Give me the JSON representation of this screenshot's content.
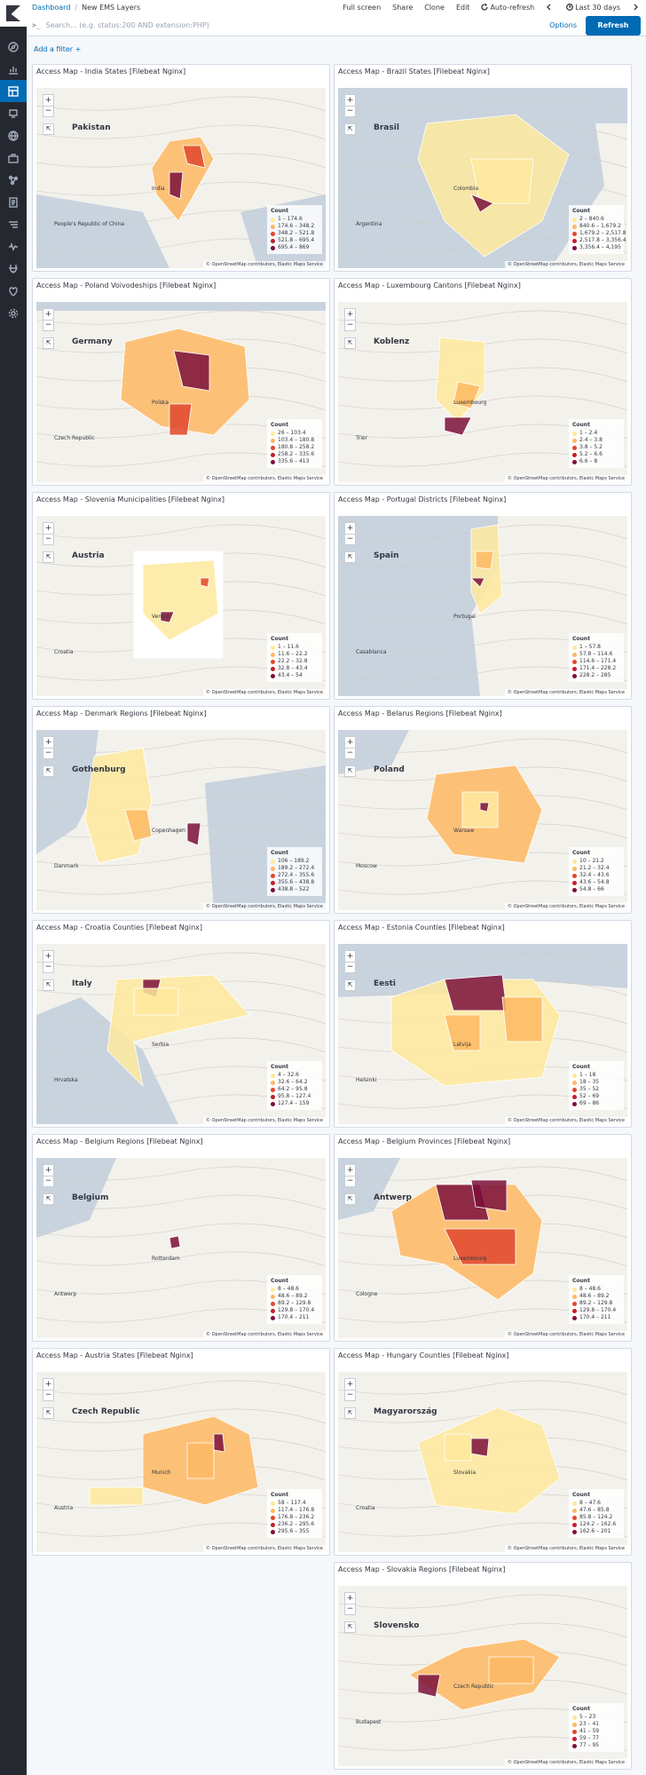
{
  "nav": {
    "items": [
      "compass-icon",
      "chart-icon",
      "dashboard-icon",
      "canvas-icon",
      "maps-icon",
      "briefcase-icon",
      "graph-icon",
      "logs-icon",
      "apm-icon",
      "uptime-icon",
      "dev-tools-icon",
      "monitoring-icon",
      "gear-icon"
    ]
  },
  "topbar": {
    "breadcrumb_root": "Dashboard",
    "breadcrumb_current": "New EMS Layers",
    "full_screen": "Full screen",
    "share": "Share",
    "clone": "Clone",
    "edit": "Edit",
    "auto_refresh": "Auto-refresh",
    "time_range": "Last 30 days"
  },
  "query": {
    "prefix": ">_",
    "placeholder": "Search... (e.g. status:200 AND extension:PHP)",
    "options": "Options",
    "refresh": "Refresh"
  },
  "add_filter": "Add a filter +",
  "map_controls": {
    "zoom_in": "+",
    "zoom_out": "−",
    "fit": "⇱"
  },
  "attribution": "© OpenStreetMap contributors, Elastic Maps Service",
  "legend_title": "Count",
  "colors": {
    "accent": "#006bb4",
    "ramp": [
      "#fee99d",
      "#fdb863",
      "#e1462d",
      "#c21e2d",
      "#7a0f3b"
    ]
  },
  "panels": [
    {
      "title": "Access Map - India States [Filebeat Nginx]",
      "legend": [
        "1 – 174.6",
        "174.6 – 348.2",
        "348.2 – 521.8",
        "521.8 – 695.4",
        "695.4 – 869"
      ],
      "labels": [
        "Pakistan",
        "India",
        "People's Republic of China"
      ]
    },
    {
      "title": "Access Map - Brazil States [Filebeat Nginx]",
      "legend": [
        "2 – 840.6",
        "840.6 – 1,679.2",
        "1,679.2 – 2,517.8",
        "2,517.8 – 3,356.4",
        "3,356.4 – 4,195"
      ],
      "labels": [
        "Brasil",
        "Colombia",
        "Argentina"
      ]
    },
    {
      "title": "Access Map - Poland Voivodeships [Filebeat Nginx]",
      "legend": [
        "26 – 103.4",
        "103.4 – 180.8",
        "180.8 – 258.2",
        "258.2 – 335.6",
        "335.6 – 413"
      ],
      "labels": [
        "Germany",
        "Polska",
        "Czech Republic"
      ]
    },
    {
      "title": "Access Map - Luxembourg Cantons [Filebeat Nginx]",
      "legend": [
        "1 – 2.4",
        "2.4 – 3.8",
        "3.8 – 5.2",
        "5.2 – 6.6",
        "6.6 – 8"
      ],
      "labels": [
        "Koblenz",
        "Luxembourg",
        "Trier"
      ]
    },
    {
      "title": "Access Map - Slovenia Municipalities [Filebeat Nginx]",
      "legend": [
        "1 – 11.6",
        "11.6 – 22.2",
        "22.2 – 32.8",
        "32.8 – 43.4",
        "43.4 – 54"
      ],
      "labels": [
        "Austria",
        "Venice",
        "Croatia"
      ]
    },
    {
      "title": "Access Map - Portugal Districts [Filebeat Nginx]",
      "legend": [
        "1 – 57.8",
        "57.8 – 114.6",
        "114.6 – 171.4",
        "171.4 – 228.2",
        "228.2 – 285"
      ],
      "labels": [
        "Spain",
        "Portugal",
        "Casablanca"
      ]
    },
    {
      "title": "Access Map - Denmark Regions [Filebeat Nginx]",
      "legend": [
        "106 – 189.2",
        "189.2 – 272.4",
        "272.4 – 355.6",
        "355.6 – 438.8",
        "438.8 – 522"
      ],
      "labels": [
        "Gothenburg",
        "Copenhagen",
        "Danmark"
      ]
    },
    {
      "title": "Access Map - Belarus Regions [Filebeat Nginx]",
      "legend": [
        "10 – 21.2",
        "21.2 – 32.4",
        "32.4 – 43.6",
        "43.6 – 54.8",
        "54.8 – 66"
      ],
      "labels": [
        "Poland",
        "Warsaw",
        "Moscow"
      ]
    },
    {
      "title": "Access Map - Croatia Counties [Filebeat Nginx]",
      "legend": [
        "4 – 32.6",
        "32.6 – 64.2",
        "64.2 – 95.8",
        "95.8 – 127.4",
        "127.4 – 159"
      ],
      "labels": [
        "Italy",
        "Serbia",
        "Hrvatska"
      ]
    },
    {
      "title": "Access Map - Estonia Counties [Filebeat Nginx]",
      "legend": [
        "1 – 18",
        "18 – 35",
        "35 – 52",
        "52 – 69",
        "69 – 86"
      ],
      "labels": [
        "Eesti",
        "Latvija",
        "Helsinki"
      ]
    },
    {
      "title": "Access Map - Belgium Regions [Filebeat Nginx]",
      "legend": [
        "8 – 48.6",
        "48.6 – 89.2",
        "89.2 – 129.8",
        "129.8 – 170.4",
        "170.4 – 211"
      ],
      "labels": [
        "Belgium",
        "Rotterdam",
        "Antwerp"
      ]
    },
    {
      "title": "Access Map - Belgium Provinces [Filebeat Nginx]",
      "legend": [
        "8 – 48.6",
        "48.6 – 89.2",
        "89.2 – 129.8",
        "129.8 – 170.4",
        "170.4 – 211"
      ],
      "labels": [
        "Antwerp",
        "Luxembourg",
        "Cologne"
      ]
    },
    {
      "title": "Access Map - Austria States [Filebeat Nginx]",
      "legend": [
        "58 – 117.4",
        "117.4 – 176.8",
        "176.8 – 236.2",
        "236.2 – 295.6",
        "295.6 – 355"
      ],
      "labels": [
        "Czech Republic",
        "Munich",
        "Austria"
      ]
    },
    {
      "title": "Access Map - Hungary Counties [Filebeat Nginx]",
      "legend": [
        "8 – 47.6",
        "47.6 – 85.8",
        "85.8 – 124.2",
        "124.2 – 162.6",
        "162.6 – 201"
      ],
      "labels": [
        "Magyarország",
        "Slovakia",
        "Croatia"
      ]
    },
    {
      "title": "Access Map - Slovakia Regions [Filebeat Nginx]",
      "legend": [
        "5 – 23",
        "23 – 41",
        "41 – 59",
        "59 – 77",
        "77 – 95"
      ],
      "labels": [
        "Slovensko",
        "Czech Republic",
        "Budapest"
      ]
    }
  ]
}
